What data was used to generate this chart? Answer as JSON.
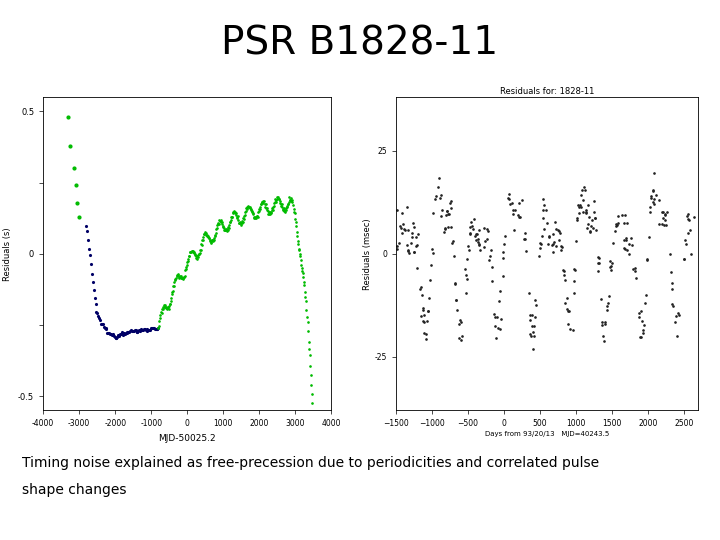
{
  "title": "PSR B1828-11",
  "title_fontsize": 28,
  "title_fontweight": "normal",
  "caption_line1": "Timing noise explained as free-precession due to periodicities and correlated pulse",
  "caption_line2": "shape changes",
  "caption_fontsize": 10,
  "bg_color": "#ffffff",
  "left_panel": {
    "xlabel": "MJD-50025.2",
    "ylabel": "Residuals (s)",
    "xlim": [
      -4000,
      4000
    ],
    "ylim": [
      -0.55,
      0.55
    ],
    "xticks": [
      -4000,
      -3000,
      -2000,
      -1000,
      0,
      1000,
      2000,
      3000,
      4000
    ],
    "yticks": [
      -0.5,
      -0.25,
      0.0,
      0.25,
      0.5
    ],
    "ytick_labels": [
      "-0.5",
      "",
      "0",
      "",
      "0.5"
    ],
    "green_color": "#00bb00",
    "blue_color": "#000066"
  },
  "right_panel": {
    "title": "Residuals for: 1828-11",
    "xlabel": "Days from 93/20/13   MJD=40243.5",
    "ylabel": "Residuals (msec)",
    "xlim": [
      -1500,
      2700
    ],
    "ylim": [
      -38,
      38
    ],
    "xticks": [
      -1500,
      -1000,
      -500,
      0,
      500,
      1000,
      1500,
      2000,
      2500
    ],
    "yticks": [
      -25,
      0,
      25
    ],
    "ytick_labels": [
      "-25",
      "0",
      "25"
    ],
    "dot_color": "#222222"
  }
}
